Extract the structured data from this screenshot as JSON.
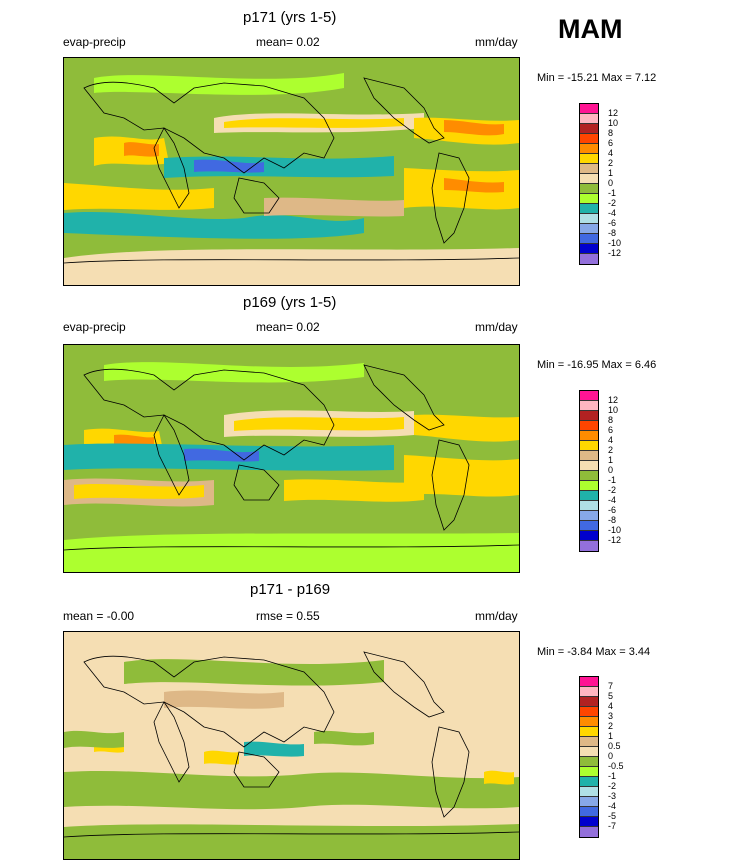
{
  "season": "MAM",
  "panels": [
    {
      "title": "p171 (yrs 1-5)",
      "left_label": "evap-precip",
      "center_label": "mean=  0.02",
      "right_label": "mm/day",
      "minmax": "Min = -15.21 Max =   7.12",
      "legend_labels": [
        "12",
        "10",
        "8",
        "6",
        "4",
        "2",
        "1",
        "0",
        "-1",
        "-2",
        "-4",
        "-6",
        "-8",
        "-10",
        "-12"
      ]
    },
    {
      "title": "p169 (yrs 1-5)",
      "left_label": "evap-precip",
      "center_label": "mean=  0.02",
      "right_label": "mm/day",
      "minmax": "Min = -16.95 Max =   6.46",
      "legend_labels": [
        "12",
        "10",
        "8",
        "6",
        "4",
        "2",
        "1",
        "0",
        "-1",
        "-2",
        "-4",
        "-6",
        "-8",
        "-10",
        "-12"
      ]
    },
    {
      "title": "p171 - p169",
      "left_label": "mean =  -0.00",
      "center_label": "rmse =   0.55",
      "right_label": "mm/day",
      "minmax": "Min =  -3.84 Max =   3.44",
      "legend_labels": [
        "7",
        "5",
        "4",
        "3",
        "2",
        "1",
        "0.5",
        "0",
        "-0.5",
        "-1",
        "-2",
        "-3",
        "-4",
        "-5",
        "-7"
      ]
    }
  ],
  "colors": {
    "legend_scale": [
      "#ff1493",
      "#ffb6c1",
      "#b22222",
      "#ff4500",
      "#ff8c00",
      "#ffd700",
      "#deb887",
      "#f5deb3",
      "#8fbc3a",
      "#adff2f",
      "#20b2aa",
      "#b0e0e6",
      "#87a8e8",
      "#4169e1",
      "#0000cd",
      "#9370db"
    ]
  },
  "chart_data": [
    {
      "type": "heatmap",
      "title": "p171 (yrs 1-5)",
      "variable": "evap-precip",
      "units": "mm/day",
      "mean": 0.02,
      "min": -15.21,
      "max": 7.12,
      "levels": [
        -12,
        -10,
        -8,
        -6,
        -4,
        -2,
        -1,
        0,
        1,
        2,
        4,
        6,
        8,
        10,
        12
      ]
    },
    {
      "type": "heatmap",
      "title": "p169 (yrs 1-5)",
      "variable": "evap-precip",
      "units": "mm/day",
      "mean": 0.02,
      "min": -16.95,
      "max": 6.46,
      "levels": [
        -12,
        -10,
        -8,
        -6,
        -4,
        -2,
        -1,
        0,
        1,
        2,
        4,
        6,
        8,
        10,
        12
      ]
    },
    {
      "type": "heatmap",
      "title": "p171 - p169",
      "units": "mm/day",
      "mean": -0.0,
      "rmse": 0.55,
      "min": -3.84,
      "max": 3.44,
      "levels": [
        -7,
        -5,
        -4,
        -3,
        -2,
        -1,
        -0.5,
        0,
        0.5,
        1,
        2,
        3,
        4,
        5,
        7
      ]
    }
  ]
}
